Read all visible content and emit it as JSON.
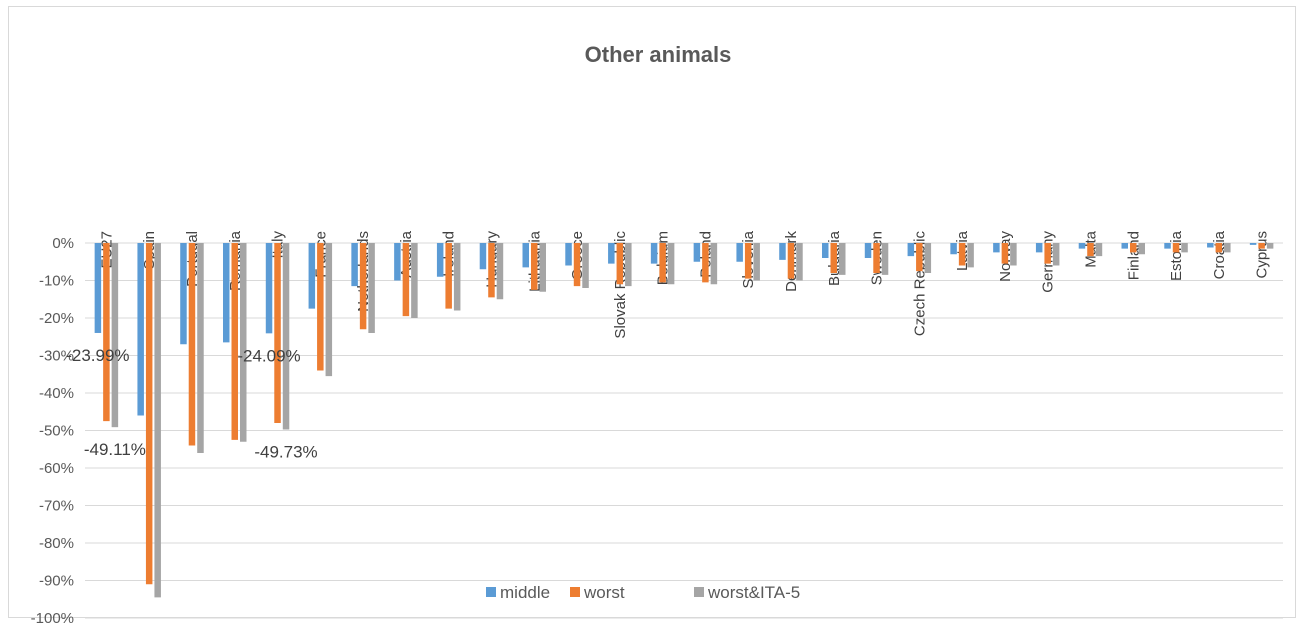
{
  "chart_data": {
    "type": "bar",
    "title": "Other animals",
    "xlabel": "",
    "ylabel": "",
    "ylim": [
      -100,
      0
    ],
    "grid": true,
    "legend_position": "bottom",
    "y_ticks": [
      "0%",
      "-10%",
      "-20%",
      "-30%",
      "-40%",
      "-50%",
      "-60%",
      "-70%",
      "-80%",
      "-90%",
      "-100%"
    ],
    "categories": [
      "EU27",
      "Spain",
      "Portugal",
      "Romania",
      "Italy",
      "France",
      "Netherlands",
      "Austria",
      "Ireland",
      "Hungary",
      "Lithuania",
      "Greece",
      "Slovak Republic",
      "Belgium",
      "Poland",
      "Slovenia",
      "Denmark",
      "Bulgaria",
      "Sweden",
      "Czech Republic",
      "Latvia",
      "Norway",
      "Germany",
      "Malta",
      "Finland",
      "Estonia",
      "Croatia",
      "Cyprus"
    ],
    "series": [
      {
        "name": "middle",
        "color": "#5b9bd5",
        "values": [
          -23.99,
          -46,
          -27,
          -26.5,
          -24.09,
          -17.5,
          -11.5,
          -10,
          -9,
          -7,
          -6.5,
          -6,
          -5.5,
          -5.5,
          -5,
          -5,
          -4.5,
          -4,
          -4,
          -3.5,
          -3,
          -2.5,
          -2.5,
          -1.5,
          -1.5,
          -1.5,
          -1.2,
          -0.5
        ]
      },
      {
        "name": "worst",
        "color": "#ed7d31",
        "values": [
          -47.5,
          -91,
          -54,
          -52.5,
          -48,
          -34,
          -23,
          -19.5,
          -17.5,
          -14.5,
          -12.5,
          -11.5,
          -11,
          -10.5,
          -10.5,
          -9.5,
          -9.5,
          -8,
          -8,
          -7.5,
          -6,
          -5.5,
          -5.5,
          -3.5,
          -2.5,
          -2.5,
          -2.5,
          -1.5
        ]
      },
      {
        "name": "worst&ITA-5",
        "color": "#a5a5a5",
        "values": [
          -49.11,
          -94.5,
          -56,
          -53,
          -49.73,
          -35.5,
          -24,
          -20,
          -18,
          -15,
          -13,
          -12,
          -11.5,
          -11,
          -11,
          -10,
          -10,
          -8.5,
          -8.5,
          -8,
          -6.5,
          -6,
          -6,
          -3.5,
          -3,
          -2.5,
          -2.5,
          -1.5
        ]
      }
    ],
    "data_labels": [
      {
        "text": "-23.99%",
        "category": "EU27",
        "series": "middle"
      },
      {
        "text": "-49.11%",
        "category": "EU27",
        "series": "worst&ITA-5"
      },
      {
        "text": "-24.09%",
        "category": "Italy",
        "series": "middle"
      },
      {
        "text": "-49.73%",
        "category": "Italy",
        "series": "worst&ITA-5"
      }
    ]
  }
}
